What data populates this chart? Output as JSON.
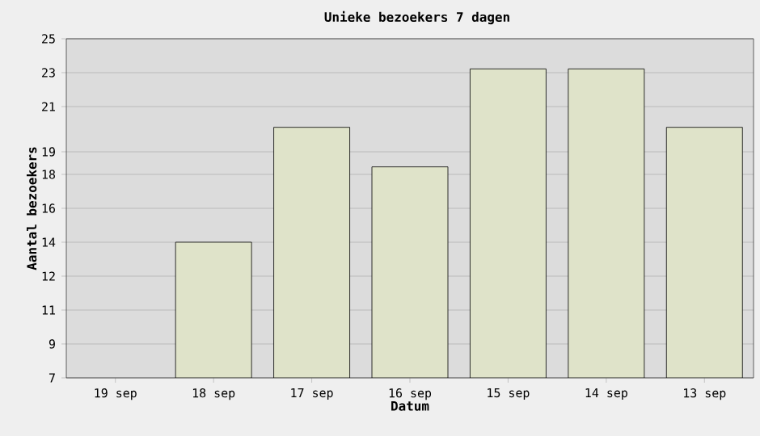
{
  "chart_data": {
    "type": "bar",
    "title": "Unieke bezoekers 7 dagen",
    "xlabel": "Datum",
    "ylabel": "Aantal bezoekers",
    "categories": [
      "19 sep",
      "18 sep",
      "17 sep",
      "16 sep",
      "15 sep",
      "14 sep",
      "13 sep"
    ],
    "values": [
      null,
      14.2,
      20.3,
      18.2,
      23.4,
      23.4,
      20.3
    ],
    "color": "#dfe3c9",
    "ylim": [
      7,
      25
    ],
    "yticks": [
      7,
      {
        "value": 8.8,
        "label": "9"
      },
      {
        "value": 10.6,
        "label": "11"
      },
      {
        "value": 12.4,
        "label": "12"
      },
      {
        "value": 14.2,
        "label": "14"
      },
      16,
      {
        "value": 17.8,
        "label": "18"
      },
      19,
      {
        "value": 21.4,
        "label": "21"
      },
      {
        "value": 23.2,
        "label": "23"
      },
      25
    ],
    "grid": "y"
  }
}
